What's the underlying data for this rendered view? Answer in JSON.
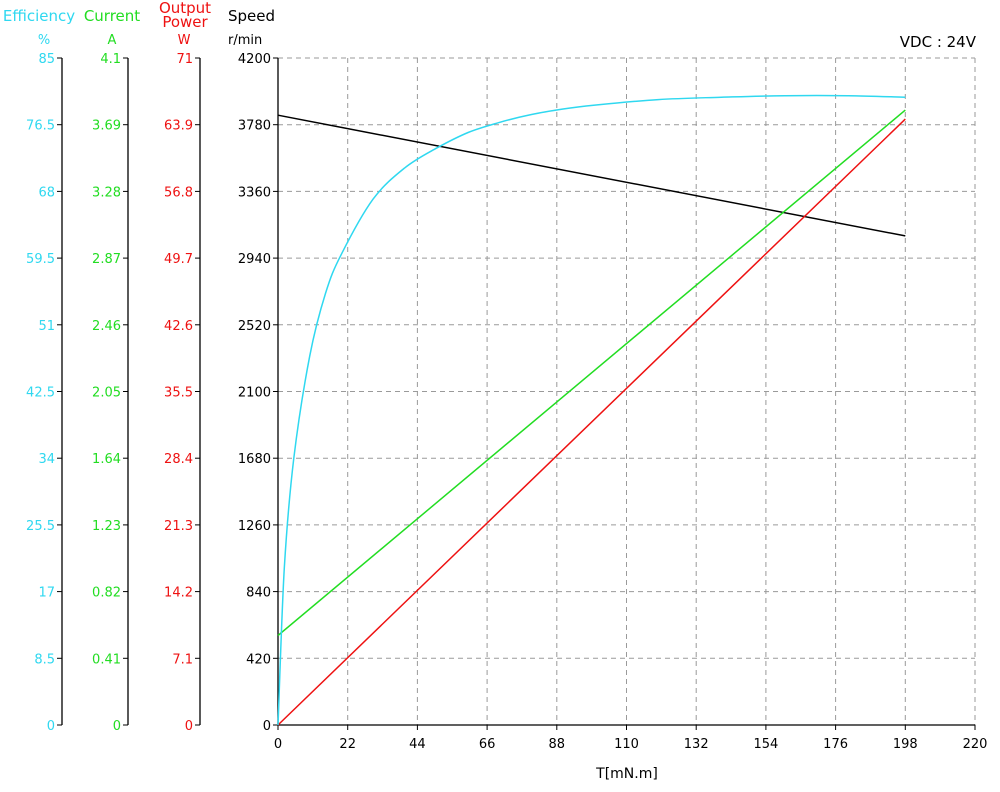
{
  "chart_data": {
    "type": "line",
    "annotation": "VDC : 24V",
    "xlabel": "T[mN.m]",
    "xlim": [
      0,
      220
    ],
    "x_ticks": [
      "0",
      "22",
      "44",
      "66",
      "88",
      "110",
      "132",
      "154",
      "176",
      "198",
      "220"
    ],
    "grid": true,
    "axes": [
      {
        "id": "efficiency",
        "title": [
          "Efficiency"
        ],
        "unit": "%",
        "color": "#2fd8f0",
        "ylim": [
          0,
          85
        ],
        "ticks": [
          "0",
          "8.5",
          "17",
          "25.5",
          "34",
          "42.5",
          "51",
          "59.5",
          "68",
          "76.5",
          "85"
        ]
      },
      {
        "id": "current",
        "title": [
          "Current"
        ],
        "unit": "A",
        "color": "#22dd22",
        "ylim": [
          0,
          4.1
        ],
        "ticks": [
          "0",
          "0.41",
          "0.82",
          "1.23",
          "1.64",
          "2.05",
          "2.46",
          "2.87",
          "3.28",
          "3.69",
          "4.1"
        ]
      },
      {
        "id": "power",
        "title": [
          "Output",
          "Power"
        ],
        "unit": "W",
        "color": "#ee1111",
        "ylim": [
          0,
          71
        ],
        "ticks": [
          "0",
          "7.1",
          "14.2",
          "21.3",
          "28.4",
          "35.5",
          "42.6",
          "49.7",
          "56.8",
          "63.9",
          "71"
        ]
      },
      {
        "id": "speed",
        "title": [
          "Speed"
        ],
        "unit": "r/min",
        "color": "#000000",
        "ylim": [
          0,
          4200
        ],
        "ticks": [
          "0",
          "420",
          "840",
          "1260",
          "1680",
          "2100",
          "2520",
          "2940",
          "3360",
          "3780",
          "4200"
        ]
      }
    ],
    "series": [
      {
        "axis": "speed",
        "color": "#000000",
        "x": [
          0,
          198
        ],
        "y": [
          3840,
          3080
        ]
      },
      {
        "axis": "current",
        "color": "#22dd22",
        "x": [
          0,
          198
        ],
        "y": [
          0.55,
          3.78
        ]
      },
      {
        "axis": "power",
        "color": "#ee1111",
        "x": [
          0,
          198
        ],
        "y": [
          0,
          64.5
        ]
      },
      {
        "axis": "efficiency",
        "color": "#2fd8f0",
        "x": [
          0,
          2,
          5,
          10,
          15,
          20,
          30,
          40,
          50,
          60,
          70,
          80,
          90,
          100,
          120,
          140,
          160,
          180,
          198
        ],
        "y": [
          0,
          20,
          34,
          47,
          55,
          60,
          67,
          71,
          73.5,
          75.5,
          76.8,
          77.8,
          78.5,
          79,
          79.7,
          80,
          80.2,
          80.2,
          80
        ]
      }
    ]
  }
}
